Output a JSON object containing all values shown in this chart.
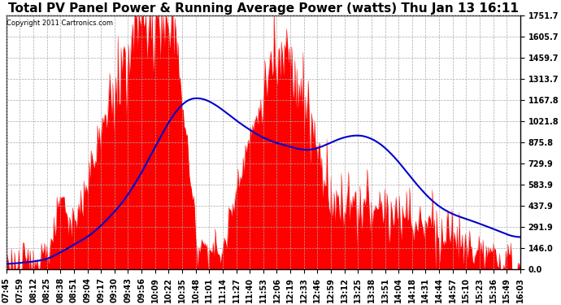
{
  "title": "Total PV Panel Power & Running Average Power (watts) Thu Jan 13 16:11",
  "copyright": "Copyright 2011 Cartronics.com",
  "yticks": [
    0.0,
    146.0,
    291.9,
    437.9,
    583.9,
    729.9,
    875.8,
    1021.8,
    1167.8,
    1313.7,
    1459.7,
    1605.7,
    1751.7
  ],
  "ymax": 1751.7,
  "xtick_labels": [
    "07:45",
    "07:59",
    "08:12",
    "08:25",
    "08:38",
    "08:51",
    "09:04",
    "09:17",
    "09:30",
    "09:43",
    "09:56",
    "10:09",
    "10:22",
    "10:35",
    "10:48",
    "11:01",
    "11:14",
    "11:27",
    "11:40",
    "11:53",
    "12:06",
    "12:19",
    "12:33",
    "12:46",
    "12:59",
    "13:12",
    "13:25",
    "13:38",
    "13:51",
    "14:04",
    "14:18",
    "14:31",
    "14:44",
    "14:57",
    "15:10",
    "15:23",
    "15:36",
    "15:49",
    "16:03"
  ],
  "bar_color": "#FF0000",
  "line_color": "#0000CC",
  "background_color": "#FFFFFF",
  "grid_color": "#AAAAAA",
  "title_fontsize": 11,
  "tick_fontsize": 7
}
